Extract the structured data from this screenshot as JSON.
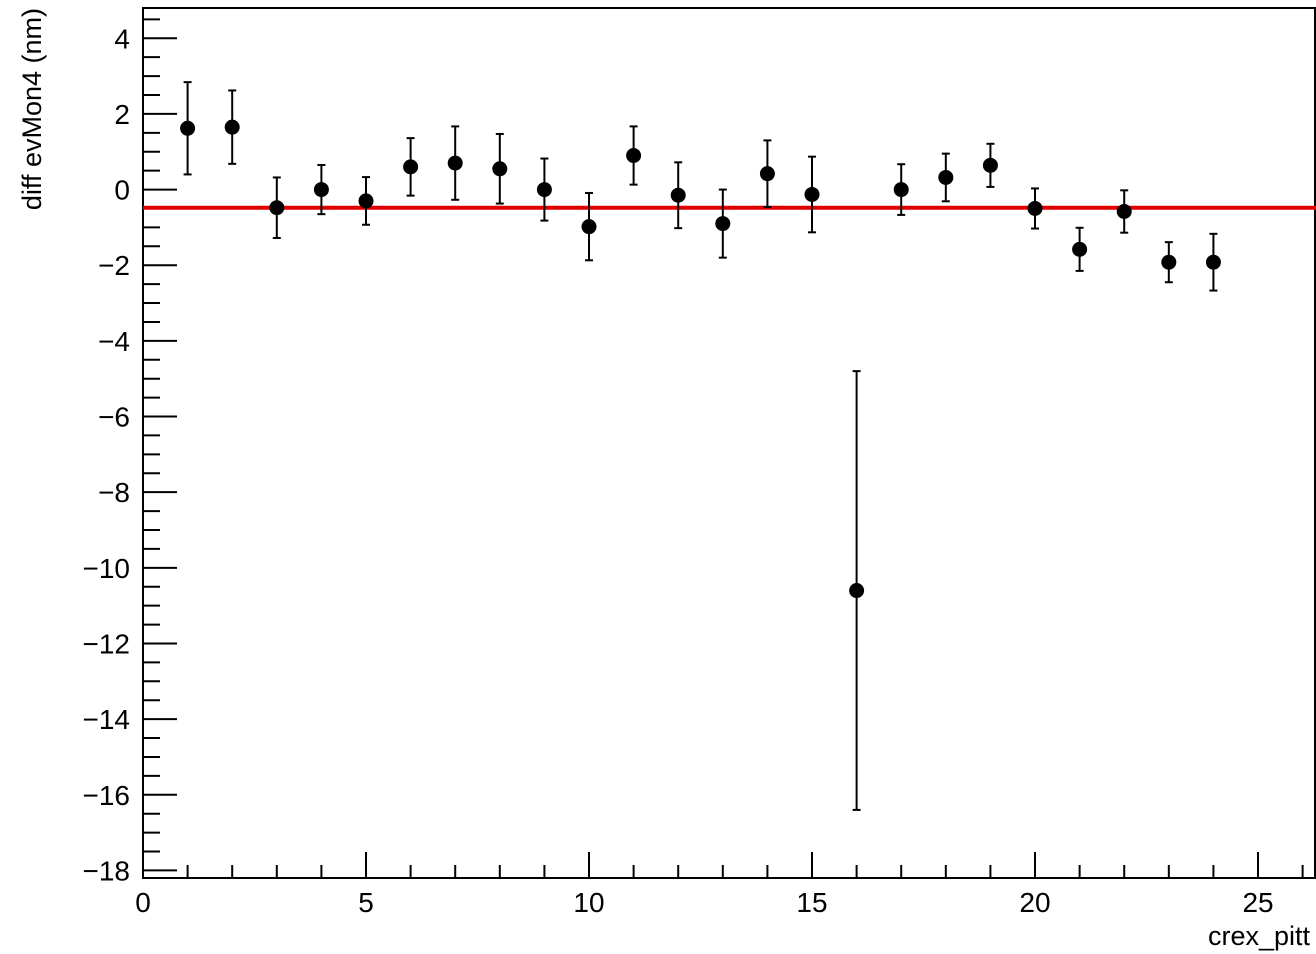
{
  "chart_data": {
    "type": "scatter",
    "title": "",
    "xlabel": "crex_pitt",
    "ylabel": "diff evMon4 (nm)",
    "xlim": [
      0,
      26.3
    ],
    "ylim": [
      -18.2,
      4.8
    ],
    "x_ticks": [
      0,
      5,
      10,
      15,
      20,
      25
    ],
    "x_tick_labels": [
      "0",
      "5",
      "10",
      "15",
      "20",
      "25"
    ],
    "y_ticks": [
      4,
      2,
      0,
      -2,
      -4,
      -6,
      -8,
      -10,
      -12,
      -14,
      -16,
      -18
    ],
    "y_tick_labels": [
      "4",
      "2",
      "0",
      "−2",
      "−4",
      "−6",
      "−8",
      "−10",
      "−12",
      "−14",
      "−16",
      "−18"
    ],
    "grid": false,
    "series": [
      {
        "color": "#000000",
        "points": [
          {
            "x": 1,
            "y": 1.62,
            "err": 1.22
          },
          {
            "x": 2,
            "y": 1.65,
            "err": 0.97
          },
          {
            "x": 3,
            "y": -0.48,
            "err": 0.8
          },
          {
            "x": 4,
            "y": 0.0,
            "err": 0.65
          },
          {
            "x": 5,
            "y": -0.3,
            "err": 0.63
          },
          {
            "x": 6,
            "y": 0.6,
            "err": 0.76
          },
          {
            "x": 7,
            "y": 0.7,
            "err": 0.97
          },
          {
            "x": 8,
            "y": 0.55,
            "err": 0.92
          },
          {
            "x": 9,
            "y": 0.0,
            "err": 0.82
          },
          {
            "x": 10,
            "y": -0.98,
            "err": 0.89
          },
          {
            "x": 11,
            "y": 0.9,
            "err": 0.77
          },
          {
            "x": 12,
            "y": -0.15,
            "err": 0.87
          },
          {
            "x": 13,
            "y": -0.9,
            "err": 0.9
          },
          {
            "x": 14,
            "y": 0.42,
            "err": 0.88
          },
          {
            "x": 15,
            "y": -0.13,
            "err": 1.0
          },
          {
            "x": 16,
            "y": -10.6,
            "err": 5.8
          },
          {
            "x": 17,
            "y": 0.0,
            "err": 0.67
          },
          {
            "x": 18,
            "y": 0.32,
            "err": 0.63
          },
          {
            "x": 19,
            "y": 0.64,
            "err": 0.57
          },
          {
            "x": 20,
            "y": -0.5,
            "err": 0.53
          },
          {
            "x": 21,
            "y": -1.58,
            "err": 0.57
          },
          {
            "x": 22,
            "y": -0.58,
            "err": 0.56
          },
          {
            "x": 23,
            "y": -1.92,
            "err": 0.53
          },
          {
            "x": 24,
            "y": -1.92,
            "err": 0.75
          }
        ]
      }
    ],
    "fit_line": {
      "y": -0.48,
      "color": "#e00000"
    }
  }
}
